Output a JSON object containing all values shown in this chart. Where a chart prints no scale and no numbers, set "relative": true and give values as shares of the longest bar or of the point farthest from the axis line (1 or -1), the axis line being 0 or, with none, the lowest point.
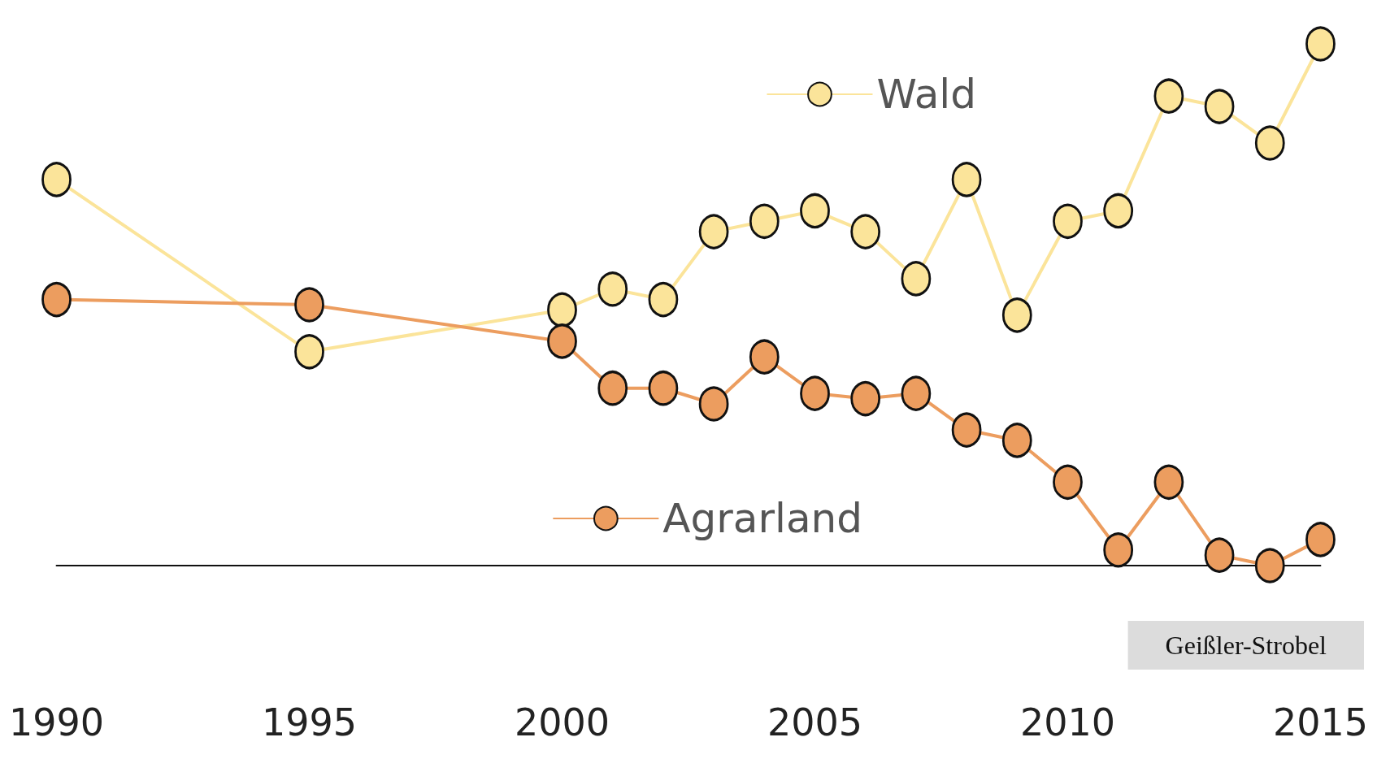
{
  "chart_data": {
    "type": "line",
    "relative": true,
    "x": [
      1990,
      1995,
      2000,
      2001,
      2002,
      2003,
      2004,
      2005,
      2006,
      2007,
      2008,
      2009,
      2010,
      2011,
      2012,
      2013,
      2014,
      2015
    ],
    "xlim": [
      1990,
      2015
    ],
    "xticks": [
      1990,
      1995,
      2000,
      2005,
      2010,
      2015
    ],
    "marker": "circle",
    "line_style": "solid",
    "legend": "right",
    "grid": false,
    "series": [
      {
        "name": "Wald",
        "color": "#fbe49a",
        "values": [
          0.74,
          0.41,
          0.49,
          0.53,
          0.51,
          0.64,
          0.66,
          0.68,
          0.64,
          0.55,
          0.74,
          0.48,
          0.66,
          0.68,
          0.9,
          0.88,
          0.81,
          1
        ]
      },
      {
        "name": "Agrarland",
        "color": "#ec9d5f",
        "values": [
          0.51,
          0.5,
          0.43,
          0.34,
          0.34,
          0.31,
          0.4,
          0.33,
          0.32,
          0.33,
          0.26,
          0.24,
          0.16,
          0.03,
          0.16,
          0.02,
          0,
          0.05
        ]
      }
    ],
    "annotations": [
      "Geißler-Strobel"
    ]
  }
}
